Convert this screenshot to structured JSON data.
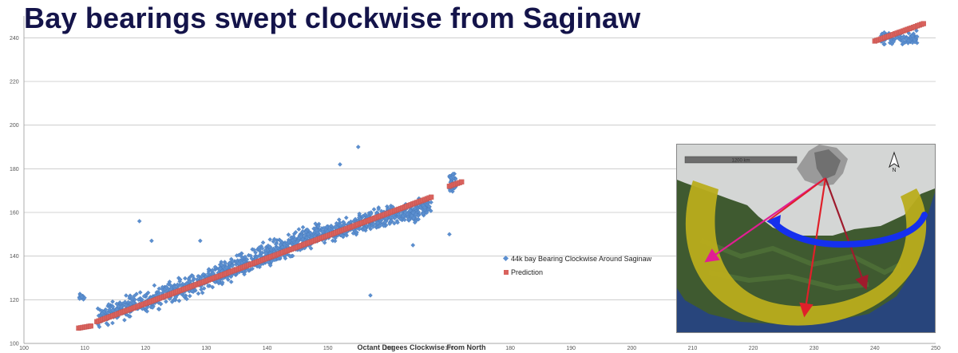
{
  "title": "Bay bearings swept clockwise from Saginaw",
  "chart_data": {
    "type": "scatter",
    "xlabel": "Octant Degees Clockwise From North",
    "ylabel": "",
    "xlim": [
      100,
      250
    ],
    "ylim": [
      100,
      250
    ],
    "x_ticks": [
      100,
      110,
      120,
      130,
      140,
      150,
      160,
      170,
      180,
      190,
      200,
      210,
      220,
      230,
      240,
      250
    ],
    "y_ticks": [
      100,
      120,
      140,
      160,
      180,
      200,
      220,
      240
    ],
    "grid": "horizontal",
    "legend_position": "right-middle",
    "series": [
      {
        "name": "44k bay Bearing Clockwise Around Saginaw",
        "marker": "diamond",
        "color": "#5b8fd0",
        "clusters": [
          {
            "x_range": [
              109,
              110
            ],
            "y_center": 121,
            "spread": 2.5,
            "count": 12
          },
          {
            "x_range": [
              112,
              131
            ],
            "y_center_start": 112,
            "y_center_end": 130,
            "spread": 7,
            "count": 380
          },
          {
            "x_range": [
              131,
              149
            ],
            "y_center_start": 130,
            "y_center_end": 151,
            "spread": 7.5,
            "count": 520
          },
          {
            "x_range": [
              149,
              167
            ],
            "y_center_start": 150,
            "y_center_end": 163,
            "spread": 6.5,
            "count": 460
          },
          {
            "x_range": [
              170,
              171
            ],
            "y_center": 174,
            "spread": 7,
            "count": 40
          },
          {
            "x_range": [
              241,
              247
            ],
            "y_center": 240,
            "spread": 4,
            "count": 110
          }
        ],
        "outliers": [
          {
            "x": 119,
            "y": 156
          },
          {
            "x": 155,
            "y": 190
          },
          {
            "x": 152,
            "y": 182
          },
          {
            "x": 157,
            "y": 122
          },
          {
            "x": 164,
            "y": 145
          },
          {
            "x": 121,
            "y": 147
          },
          {
            "x": 170,
            "y": 150
          },
          {
            "x": 129,
            "y": 147
          }
        ]
      },
      {
        "name": "Prediction",
        "marker": "square",
        "color": "#d9625d",
        "segments": [
          {
            "x": [
              109,
              111
            ],
            "y": [
              107,
              108
            ]
          },
          {
            "x": [
              112,
              167
            ],
            "y": [
              110,
              167
            ]
          },
          {
            "x": [
              170,
              172
            ],
            "y": [
              172,
              174
            ]
          },
          {
            "x": [
              240,
              248
            ],
            "y": [
              238.5,
              246.5
            ]
          }
        ]
      }
    ]
  },
  "map": {
    "scale_label": "1200 km",
    "colors": {
      "ice": "#d4d6d5",
      "land": "#3f5a30",
      "ocean": "#28457c",
      "band": "#b9ad1c",
      "blue_arrow": "#1530ee",
      "red_arrow": "#e0202a",
      "pink_arrow": "#e11e93",
      "dark_red_arrow": "#9f1b2d"
    }
  }
}
